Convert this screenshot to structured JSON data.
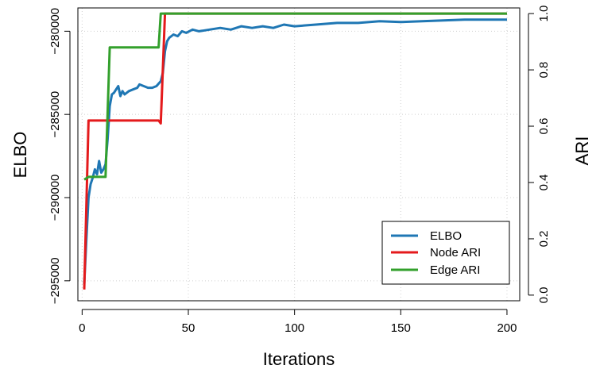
{
  "chart_data": {
    "type": "line",
    "xlabel": "Iterations",
    "ylabel_left": "ELBO",
    "ylabel_right": "ARI",
    "x_range": [
      1,
      200
    ],
    "xlim": [
      -2,
      206
    ],
    "x_ticks": [
      0,
      50,
      100,
      150,
      200
    ],
    "x_tick_labels": [
      "0",
      "50",
      "100",
      "150",
      "200"
    ],
    "ylim_left": [
      -296200,
      -278600
    ],
    "y_ticks_left": [
      -295000,
      -290000,
      -285000,
      -280000
    ],
    "y_tick_labels_left": [
      "−295000",
      "−290000",
      "−285000",
      "−280000"
    ],
    "ylim_right": [
      -0.02,
      1.02
    ],
    "y_ticks_right": [
      0.0,
      0.2,
      0.4,
      0.6,
      0.8,
      1.0
    ],
    "y_tick_labels_right": [
      "0.0",
      "0.2",
      "0.4",
      "0.6",
      "0.8",
      "1.0"
    ],
    "grid": true,
    "legend_position": "bottom-right",
    "colors": {
      "elbo": "#1f77b4",
      "node_ari": "#e41a1c",
      "edge_ari": "#33a02c"
    },
    "series": [
      {
        "name": "ELBO",
        "axis": "left",
        "points": [
          [
            1,
            -295200
          ],
          [
            2,
            -292500
          ],
          [
            3,
            -290000
          ],
          [
            4,
            -289200
          ],
          [
            5,
            -288800
          ],
          [
            6,
            -288300
          ],
          [
            7,
            -288600
          ],
          [
            8,
            -287800
          ],
          [
            9,
            -288500
          ],
          [
            10,
            -288300
          ],
          [
            11,
            -288000
          ],
          [
            12,
            -286500
          ],
          [
            13,
            -284500
          ],
          [
            14,
            -283800
          ],
          [
            15,
            -283700
          ],
          [
            16,
            -283500
          ],
          [
            17,
            -283300
          ],
          [
            18,
            -283900
          ],
          [
            19,
            -283600
          ],
          [
            20,
            -283800
          ],
          [
            22,
            -283600
          ],
          [
            24,
            -283500
          ],
          [
            26,
            -283400
          ],
          [
            27,
            -283200
          ],
          [
            29,
            -283300
          ],
          [
            31,
            -283400
          ],
          [
            33,
            -283400
          ],
          [
            35,
            -283300
          ],
          [
            37,
            -283000
          ],
          [
            38,
            -282500
          ],
          [
            39,
            -281200
          ],
          [
            40,
            -280600
          ],
          [
            41,
            -280400
          ],
          [
            43,
            -280200
          ],
          [
            45,
            -280300
          ],
          [
            47,
            -280000
          ],
          [
            49,
            -280100
          ],
          [
            52,
            -279900
          ],
          [
            55,
            -280000
          ],
          [
            60,
            -279900
          ],
          [
            65,
            -279800
          ],
          [
            70,
            -279900
          ],
          [
            75,
            -279700
          ],
          [
            80,
            -279800
          ],
          [
            85,
            -279700
          ],
          [
            90,
            -279800
          ],
          [
            95,
            -279600
          ],
          [
            100,
            -279700
          ],
          [
            110,
            -279600
          ],
          [
            120,
            -279500
          ],
          [
            130,
            -279500
          ],
          [
            140,
            -279400
          ],
          [
            150,
            -279450
          ],
          [
            160,
            -279400
          ],
          [
            170,
            -279350
          ],
          [
            180,
            -279300
          ],
          [
            190,
            -279300
          ],
          [
            200,
            -279300
          ]
        ]
      },
      {
        "name": "Node ARI",
        "axis": "right",
        "points": [
          [
            1,
            0.02
          ],
          [
            3,
            0.62
          ],
          [
            36,
            0.62
          ],
          [
            37,
            0.61
          ],
          [
            39,
            1.0
          ],
          [
            200,
            1.0
          ]
        ]
      },
      {
        "name": "Edge ARI",
        "axis": "right",
        "points": [
          [
            1,
            0.41
          ],
          [
            3,
            0.42
          ],
          [
            11,
            0.42
          ],
          [
            13,
            0.88
          ],
          [
            30,
            0.88
          ],
          [
            36,
            0.88
          ],
          [
            37,
            1.0
          ],
          [
            200,
            1.0
          ]
        ]
      }
    ]
  }
}
